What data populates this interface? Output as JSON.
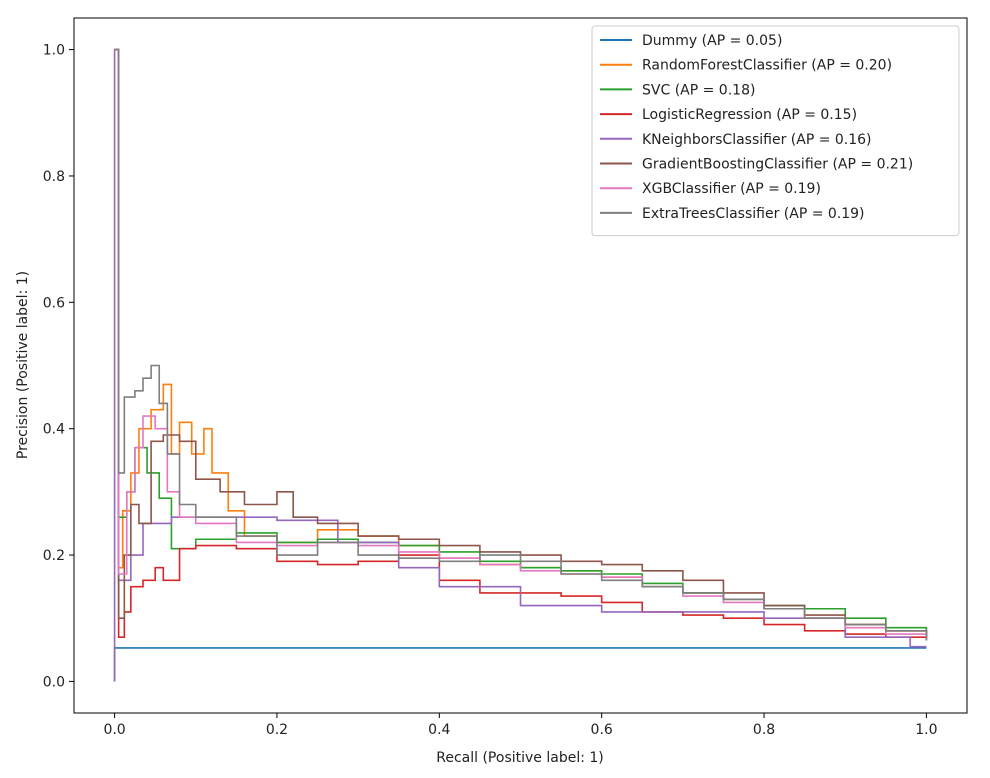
{
  "chart_data": {
    "type": "line",
    "xlabel": "Recall (Positive label: 1)",
    "ylabel": "Precision (Positive label: 1)",
    "xlim": [
      -0.05,
      1.05
    ],
    "ylim": [
      -0.05,
      1.05
    ],
    "xticks": [
      0.0,
      0.2,
      0.4,
      0.6,
      0.8,
      1.0
    ],
    "xtick_labels": [
      "0.0",
      "0.2",
      "0.4",
      "0.6",
      "0.8",
      "1.0"
    ],
    "yticks": [
      0.0,
      0.2,
      0.4,
      0.6,
      0.8,
      1.0
    ],
    "ytick_labels": [
      "0.0",
      "0.2",
      "0.4",
      "0.6",
      "0.8",
      "1.0"
    ],
    "grid": false,
    "legend_position": "upper right",
    "series": [
      {
        "name": "Dummy (AP = 0.05)",
        "color": "#1f77b4",
        "points": [
          [
            0.0,
            0.0
          ],
          [
            0.0,
            0.053
          ],
          [
            1.0,
            0.053
          ]
        ]
      },
      {
        "name": "RandomForestClassifier (AP = 0.20)",
        "color": "#ff7f0e",
        "points": [
          [
            0.0,
            1.0
          ],
          [
            0.005,
            0.18
          ],
          [
            0.01,
            0.27
          ],
          [
            0.02,
            0.33
          ],
          [
            0.03,
            0.4
          ],
          [
            0.045,
            0.43
          ],
          [
            0.06,
            0.47
          ],
          [
            0.07,
            0.36
          ],
          [
            0.08,
            0.41
          ],
          [
            0.095,
            0.36
          ],
          [
            0.11,
            0.4
          ],
          [
            0.12,
            0.33
          ],
          [
            0.14,
            0.27
          ],
          [
            0.16,
            0.23
          ],
          [
            0.2,
            0.22
          ],
          [
            0.25,
            0.24
          ],
          [
            0.3,
            0.23
          ],
          [
            0.35,
            0.215
          ],
          [
            0.4,
            0.195
          ],
          [
            0.45,
            0.185
          ],
          [
            0.5,
            0.18
          ],
          [
            0.55,
            0.175
          ],
          [
            0.6,
            0.165
          ],
          [
            0.65,
            0.15
          ],
          [
            0.7,
            0.14
          ],
          [
            0.75,
            0.13
          ],
          [
            0.8,
            0.115
          ],
          [
            0.85,
            0.1
          ],
          [
            0.9,
            0.09
          ],
          [
            0.95,
            0.08
          ],
          [
            1.0,
            0.072
          ]
        ]
      },
      {
        "name": "SVC (AP = 0.18)",
        "color": "#2ca02c",
        "points": [
          [
            0.0,
            1.0
          ],
          [
            0.005,
            0.26
          ],
          [
            0.015,
            0.3
          ],
          [
            0.025,
            0.37
          ],
          [
            0.04,
            0.33
          ],
          [
            0.055,
            0.29
          ],
          [
            0.07,
            0.21
          ],
          [
            0.1,
            0.225
          ],
          [
            0.15,
            0.235
          ],
          [
            0.2,
            0.22
          ],
          [
            0.25,
            0.225
          ],
          [
            0.3,
            0.22
          ],
          [
            0.35,
            0.215
          ],
          [
            0.4,
            0.205
          ],
          [
            0.45,
            0.19
          ],
          [
            0.5,
            0.18
          ],
          [
            0.55,
            0.175
          ],
          [
            0.6,
            0.17
          ],
          [
            0.65,
            0.155
          ],
          [
            0.7,
            0.14
          ],
          [
            0.75,
            0.13
          ],
          [
            0.8,
            0.12
          ],
          [
            0.85,
            0.115
          ],
          [
            0.9,
            0.1
          ],
          [
            0.95,
            0.085
          ],
          [
            1.0,
            0.07
          ]
        ]
      },
      {
        "name": "LogisticRegression (AP = 0.15)",
        "color": "#d62728",
        "points": [
          [
            0.0,
            1.0
          ],
          [
            0.005,
            0.07
          ],
          [
            0.012,
            0.11
          ],
          [
            0.02,
            0.15
          ],
          [
            0.035,
            0.16
          ],
          [
            0.05,
            0.18
          ],
          [
            0.06,
            0.16
          ],
          [
            0.08,
            0.21
          ],
          [
            0.1,
            0.215
          ],
          [
            0.15,
            0.21
          ],
          [
            0.2,
            0.19
          ],
          [
            0.25,
            0.185
          ],
          [
            0.3,
            0.19
          ],
          [
            0.35,
            0.2
          ],
          [
            0.4,
            0.16
          ],
          [
            0.45,
            0.14
          ],
          [
            0.5,
            0.14
          ],
          [
            0.55,
            0.135
          ],
          [
            0.6,
            0.125
          ],
          [
            0.65,
            0.11
          ],
          [
            0.7,
            0.105
          ],
          [
            0.75,
            0.1
          ],
          [
            0.8,
            0.09
          ],
          [
            0.85,
            0.08
          ],
          [
            0.9,
            0.075
          ],
          [
            0.95,
            0.07
          ],
          [
            1.0,
            0.065
          ]
        ]
      },
      {
        "name": "KNeighborsClassifier (AP = 0.16)",
        "color": "#9467bd",
        "points": [
          [
            0.0,
            0.0
          ],
          [
            0.0,
            1.0
          ],
          [
            0.005,
            0.16
          ],
          [
            0.02,
            0.2
          ],
          [
            0.035,
            0.25
          ],
          [
            0.07,
            0.26
          ],
          [
            0.1,
            0.26
          ],
          [
            0.15,
            0.26
          ],
          [
            0.2,
            0.255
          ],
          [
            0.275,
            0.255
          ],
          [
            0.275,
            0.22
          ],
          [
            0.35,
            0.18
          ],
          [
            0.4,
            0.15
          ],
          [
            0.45,
            0.15
          ],
          [
            0.5,
            0.12
          ],
          [
            0.6,
            0.11
          ],
          [
            0.7,
            0.11
          ],
          [
            0.8,
            0.1
          ],
          [
            0.9,
            0.07
          ],
          [
            0.98,
            0.055
          ],
          [
            1.0,
            0.055
          ]
        ]
      },
      {
        "name": "GradientBoostingClassifier (AP = 0.21)",
        "color": "#8c564b",
        "points": [
          [
            0.0,
            1.0
          ],
          [
            0.005,
            0.1
          ],
          [
            0.012,
            0.2
          ],
          [
            0.02,
            0.28
          ],
          [
            0.03,
            0.25
          ],
          [
            0.045,
            0.38
          ],
          [
            0.06,
            0.39
          ],
          [
            0.08,
            0.38
          ],
          [
            0.1,
            0.32
          ],
          [
            0.13,
            0.3
          ],
          [
            0.16,
            0.28
          ],
          [
            0.2,
            0.3
          ],
          [
            0.22,
            0.26
          ],
          [
            0.25,
            0.25
          ],
          [
            0.3,
            0.23
          ],
          [
            0.35,
            0.225
          ],
          [
            0.4,
            0.215
          ],
          [
            0.45,
            0.205
          ],
          [
            0.5,
            0.2
          ],
          [
            0.55,
            0.19
          ],
          [
            0.6,
            0.185
          ],
          [
            0.65,
            0.175
          ],
          [
            0.7,
            0.16
          ],
          [
            0.75,
            0.14
          ],
          [
            0.8,
            0.12
          ],
          [
            0.85,
            0.105
          ],
          [
            0.9,
            0.09
          ],
          [
            0.95,
            0.08
          ],
          [
            1.0,
            0.07
          ]
        ]
      },
      {
        "name": "XGBClassifier (AP = 0.19)",
        "color": "#e377c2",
        "points": [
          [
            0.0,
            1.0
          ],
          [
            0.005,
            0.17
          ],
          [
            0.015,
            0.3
          ],
          [
            0.025,
            0.37
          ],
          [
            0.035,
            0.42
          ],
          [
            0.05,
            0.4
          ],
          [
            0.065,
            0.3
          ],
          [
            0.08,
            0.26
          ],
          [
            0.1,
            0.25
          ],
          [
            0.15,
            0.22
          ],
          [
            0.2,
            0.215
          ],
          [
            0.25,
            0.22
          ],
          [
            0.3,
            0.215
          ],
          [
            0.35,
            0.205
          ],
          [
            0.4,
            0.195
          ],
          [
            0.45,
            0.185
          ],
          [
            0.5,
            0.175
          ],
          [
            0.55,
            0.17
          ],
          [
            0.6,
            0.165
          ],
          [
            0.65,
            0.15
          ],
          [
            0.7,
            0.135
          ],
          [
            0.75,
            0.125
          ],
          [
            0.8,
            0.115
          ],
          [
            0.85,
            0.1
          ],
          [
            0.9,
            0.085
          ],
          [
            0.95,
            0.075
          ],
          [
            1.0,
            0.07
          ]
        ]
      },
      {
        "name": "ExtraTreesClassifier (AP = 0.19)",
        "color": "#7f7f7f",
        "points": [
          [
            0.0,
            1.0
          ],
          [
            0.005,
            0.33
          ],
          [
            0.012,
            0.45
          ],
          [
            0.025,
            0.46
          ],
          [
            0.035,
            0.48
          ],
          [
            0.045,
            0.5
          ],
          [
            0.055,
            0.44
          ],
          [
            0.065,
            0.36
          ],
          [
            0.08,
            0.28
          ],
          [
            0.1,
            0.26
          ],
          [
            0.15,
            0.23
          ],
          [
            0.2,
            0.2
          ],
          [
            0.25,
            0.22
          ],
          [
            0.3,
            0.2
          ],
          [
            0.35,
            0.195
          ],
          [
            0.4,
            0.19
          ],
          [
            0.45,
            0.2
          ],
          [
            0.5,
            0.19
          ],
          [
            0.55,
            0.17
          ],
          [
            0.6,
            0.16
          ],
          [
            0.65,
            0.15
          ],
          [
            0.7,
            0.14
          ],
          [
            0.75,
            0.13
          ],
          [
            0.8,
            0.115
          ],
          [
            0.85,
            0.1
          ],
          [
            0.9,
            0.09
          ],
          [
            0.95,
            0.08
          ],
          [
            1.0,
            0.065
          ]
        ]
      }
    ]
  }
}
